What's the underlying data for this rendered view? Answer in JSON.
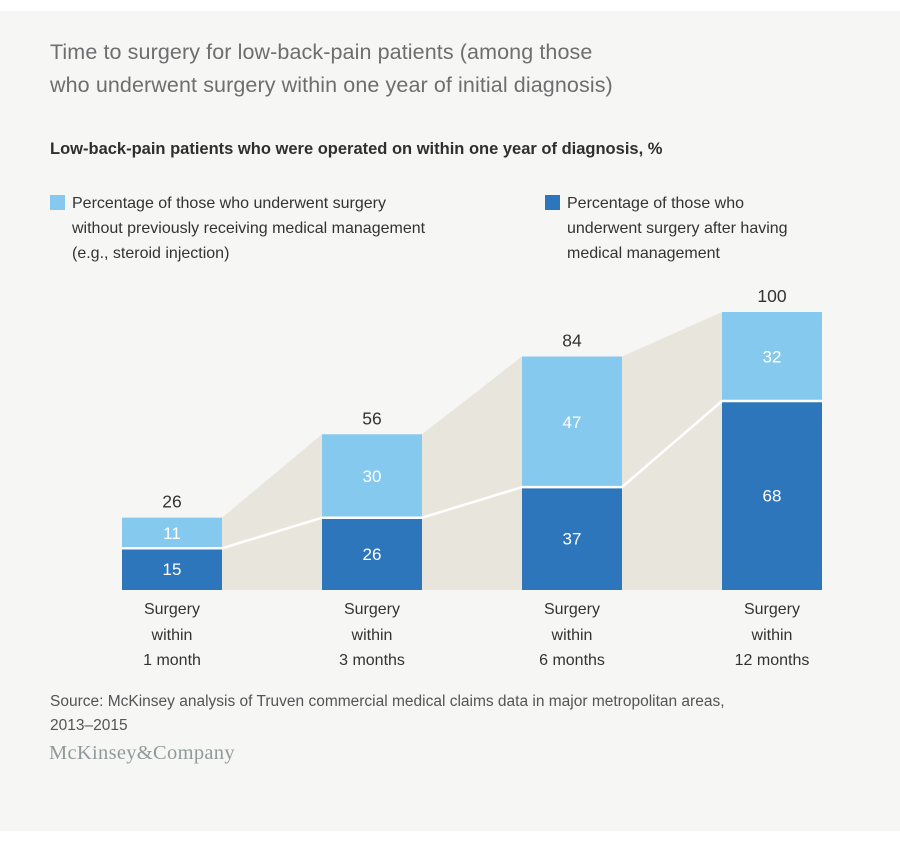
{
  "colors": {
    "canvas": "#f6f6f5",
    "light_blue": "#85c9ef",
    "dark_blue": "#2d76bc",
    "band": "#e8e5dd",
    "connector": "#ffffff",
    "title_text": "#6e6e70",
    "dark_text": "#333333",
    "source_text": "#545456",
    "logo_text": "#8f9b9b"
  },
  "header": {
    "title_lines": [
      "Time to surgery for low-back-pain patients (among those",
      "who underwent surgery within one year of initial diagnosis)"
    ],
    "subtitle": "Low-back-pain patients who were operated on within one year of diagnosis, %"
  },
  "legend": {
    "items": [
      {
        "label_lines": [
          "Percentage of those who underwent surgery",
          "without previously receiving medical management",
          "(e.g., steroid injection)"
        ],
        "color": "#85c9ef"
      },
      {
        "label_lines": [
          "Percentage of those who",
          "underwent surgery after having",
          "medical management"
        ],
        "color": "#2d76bc"
      }
    ]
  },
  "chart_data": {
    "type": "bar",
    "subtype": "stacked-bar-with-area-band",
    "title": "Low-back-pain patients who were operated on within one year of diagnosis, %",
    "categories": [
      "Surgery within 1 month",
      "Surgery within 3 months",
      "Surgery within 6 months",
      "Surgery within 12 months"
    ],
    "category_label_lines": [
      [
        "Surgery",
        "within",
        "1 month"
      ],
      [
        "Surgery",
        "within",
        "3 months"
      ],
      [
        "Surgery",
        "within",
        "6 months"
      ],
      [
        "Surgery",
        "within",
        "12 months"
      ]
    ],
    "series": [
      {
        "name": "Percentage of those who underwent surgery without previously receiving medical management (e.g., steroid injection)",
        "stack_position": "top",
        "color": "#85c9ef",
        "values": [
          11,
          30,
          47,
          32
        ]
      },
      {
        "name": "Percentage of those who underwent surgery after having medical management",
        "stack_position": "bottom",
        "color": "#2d76bc",
        "values": [
          15,
          26,
          37,
          68
        ]
      }
    ],
    "totals": [
      26,
      56,
      84,
      100
    ],
    "ylim": [
      0,
      100
    ],
    "grid": false,
    "legend_position": "top",
    "band_fill_between_bar_tops": true,
    "white_line_between_segments": true
  },
  "source": {
    "lines": [
      "Source: McKinsey analysis of Truven commercial medical claims data in major metropolitan areas,",
      "2013–2015"
    ]
  },
  "logo": {
    "text": "McKinsey&Company"
  }
}
